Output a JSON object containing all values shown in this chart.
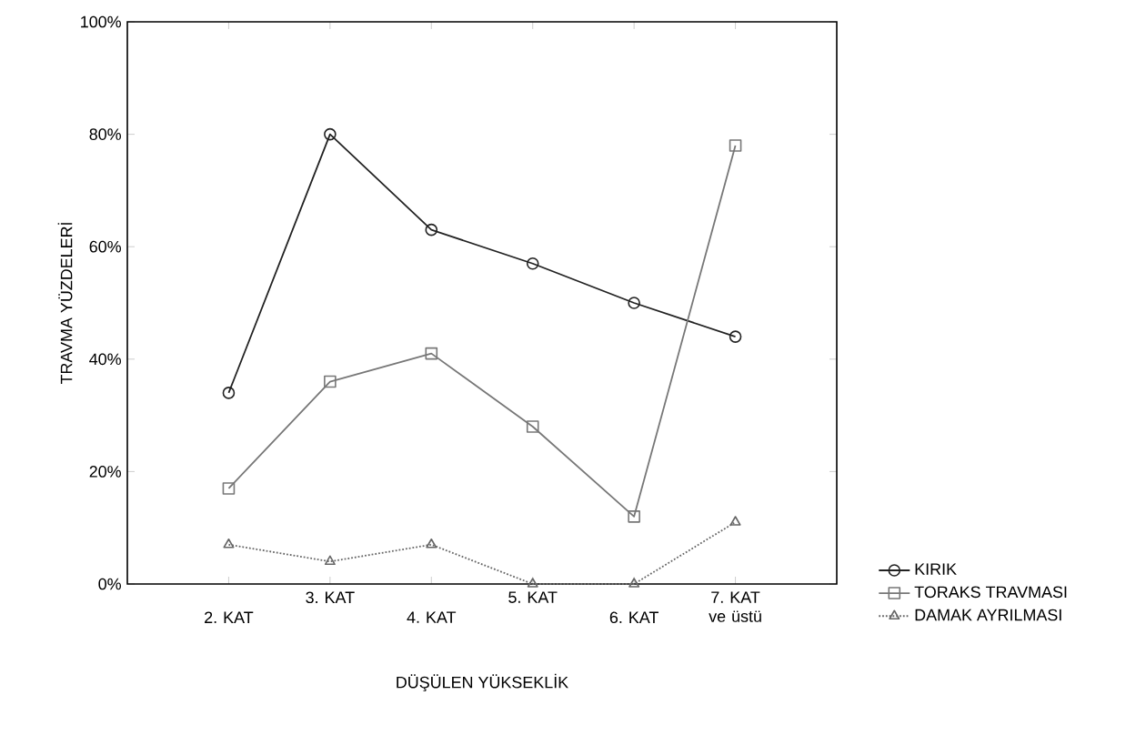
{
  "chart_data": {
    "type": "line",
    "xlabel": "DÜŞÜLEN YÜKSEKLİK",
    "ylabel": "TRAVMA YÜZDELERİ",
    "categories": [
      "2. KAT",
      "3. KAT",
      "4. KAT",
      "5. KAT",
      "6. KAT",
      "7. KAT ve üstü"
    ],
    "series": [
      {
        "name": "KIRIK",
        "color": "#222222",
        "marker": "circle",
        "line_style": "solid",
        "values": [
          34,
          80,
          63,
          57,
          50,
          44
        ]
      },
      {
        "name": "TORAKS TRAVMASI",
        "color": "#777777",
        "marker": "square",
        "line_style": "solid",
        "values": [
          17,
          36,
          41,
          28,
          12,
          78
        ]
      },
      {
        "name": "DAMAK AYRILMASI",
        "color": "#666666",
        "marker": "triangle",
        "line_style": "dotted",
        "values": [
          7,
          4,
          7,
          0,
          0,
          11
        ]
      }
    ],
    "ylim": [
      0,
      100
    ],
    "yticks": [
      {
        "value": 0,
        "label": "0%"
      },
      {
        "value": 20,
        "label": "20%"
      },
      {
        "value": 40,
        "label": "40%"
      },
      {
        "value": 60,
        "label": "60%"
      },
      {
        "value": 80,
        "label": "80%"
      },
      {
        "value": 100,
        "label": "100%"
      }
    ],
    "grid": false,
    "legend": "bottom right"
  }
}
